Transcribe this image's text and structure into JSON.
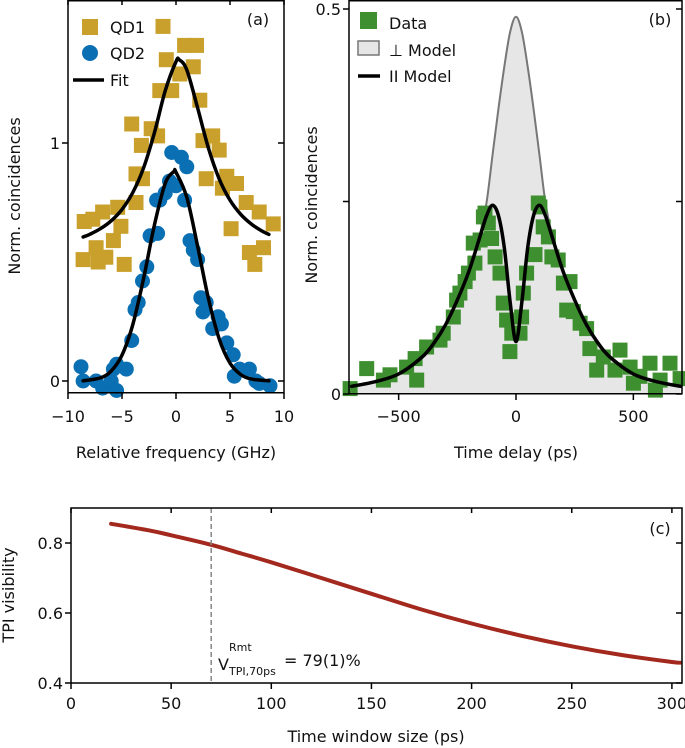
{
  "chart_data": [
    {
      "panel": "(a)",
      "type": "scatter",
      "xlabel": "Relative frequency (GHz)",
      "ylabel": "Norm. coincidences",
      "xlim": [
        -10,
        10
      ],
      "ylim": [
        -0.05,
        1.6
      ],
      "xticks": [
        "−10",
        "−5",
        "0",
        "5",
        "10"
      ],
      "xtick_values": [
        -10,
        -5,
        0,
        5,
        10
      ],
      "yticks": [
        "0",
        "1"
      ],
      "ytick_values": [
        0,
        1
      ],
      "grid": false,
      "legend_position": "top-left",
      "series": [
        {
          "name": "QD1",
          "marker": "square",
          "color": "#c9a02c",
          "x": [
            -1.2,
            0.8,
            1.9,
            -0.9,
            1.6,
            0.35,
            -1.5,
            -0.4,
            2.2,
            -4.1,
            -2.3,
            -1.7,
            2.5,
            3.4,
            -3.2,
            4.0,
            2.8,
            -3.7,
            -3.1,
            4.7,
            5.6,
            4.3,
            6.5,
            -5.4,
            -3.7,
            7.7,
            -6.8,
            -8.5,
            -7.7,
            -5.1,
            9.0,
            5.1,
            -5.8,
            -7.4,
            -8.6,
            -6.5,
            -7.2,
            -4.8,
            8.1,
            7.3,
            6.8
          ],
          "y": [
            1.49,
            1.41,
            1.41,
            1.35,
            1.32,
            1.29,
            1.22,
            1.22,
            1.18,
            1.08,
            1.06,
            1.03,
            1.01,
            1.03,
            0.99,
            0.97,
            0.85,
            0.87,
            0.85,
            0.86,
            0.83,
            0.81,
            0.75,
            0.73,
            0.75,
            0.71,
            0.71,
            0.67,
            0.68,
            0.65,
            0.66,
            0.64,
            0.59,
            0.56,
            0.51,
            0.52,
            0.5,
            0.49,
            0.56,
            0.49,
            0.54
          ]
        },
        {
          "name": "QD2",
          "marker": "circle",
          "color": "#0b6fb3",
          "x": [
            -0.4,
            0.5,
            1.0,
            -0.6,
            0.0,
            -1.0,
            -1.5,
            -1.8,
            0.8,
            -2.4,
            -1.7,
            1.3,
            1.6,
            2.0,
            -2.7,
            -3.1,
            2.3,
            -3.5,
            2.8,
            3.9,
            2.5,
            -3.8,
            3.4,
            4.2,
            -4.1,
            4.7,
            5.3,
            -5.5,
            -4.6,
            -5.8,
            -8.8,
            -8.6,
            -7.4,
            -6.8,
            -5.5,
            5.9,
            6.8,
            7.4,
            8.7,
            7.7,
            5.4,
            -6.0
          ],
          "y": [
            0.96,
            0.94,
            0.9,
            0.84,
            0.82,
            0.79,
            0.76,
            0.76,
            0.76,
            0.61,
            0.62,
            0.59,
            0.55,
            0.51,
            0.48,
            0.42,
            0.35,
            0.33,
            0.33,
            0.27,
            0.29,
            0.3,
            0.22,
            0.24,
            0.17,
            0.16,
            0.11,
            0.07,
            0.05,
            0.05,
            0.06,
            0.0,
            0.0,
            -0.03,
            -0.04,
            0.05,
            0.05,
            0.0,
            -0.02,
            -0.01,
            0.02,
            0.0
          ]
        },
        {
          "name": "Fit",
          "marker": "line",
          "color": "#000000",
          "x": [
            -8.6,
            -8,
            -7,
            -6,
            -5,
            -4,
            -3,
            -2,
            -1,
            0,
            0.3,
            1,
            2,
            3,
            4,
            5,
            6,
            7,
            8,
            8.6
          ],
          "y": [
            0.605,
            0.616,
            0.64,
            0.673,
            0.721,
            0.792,
            0.896,
            1.043,
            1.219,
            1.342,
            1.35,
            1.307,
            1.148,
            0.979,
            0.849,
            0.76,
            0.7,
            0.659,
            0.629,
            0.616
          ]
        },
        {
          "name": "Fit",
          "marker": "line",
          "color": "#000000",
          "x": [
            -8.6,
            -7,
            -6,
            -5,
            -4,
            -3,
            -2,
            -1,
            -0.2,
            0,
            1,
            2,
            3,
            4,
            5,
            6,
            7,
            8.6
          ],
          "y": [
            0.001,
            0.013,
            0.042,
            0.109,
            0.237,
            0.431,
            0.655,
            0.83,
            0.88,
            0.877,
            0.772,
            0.567,
            0.347,
            0.177,
            0.075,
            0.027,
            0.008,
            0.001
          ]
        }
      ]
    },
    {
      "panel": "(b)",
      "type": "scatter",
      "xlabel": "Time delay (ps)",
      "ylabel": "Norm. coincidences",
      "xlim": [
        -708,
        703
      ],
      "ylim": [
        0,
        0.512
      ],
      "xticks": [
        "−500",
        "0",
        "500"
      ],
      "xtick_values": [
        -500,
        0,
        500
      ],
      "yticks": [
        "0",
        "",
        "0.5"
      ],
      "ytick_values": [
        0,
        0.25,
        0.5
      ],
      "grid": false,
      "legend_position": "top-left",
      "series": [
        {
          "name": "⊥ Model",
          "marker": "area",
          "color": "#e6e6e6",
          "edge": "#777777",
          "x": [
            -700,
            -600,
            -500,
            -400,
            -350,
            -300,
            -250,
            -200,
            -150,
            -125,
            -100,
            -75,
            -50,
            -25,
            0,
            25,
            50,
            75,
            100,
            125,
            150,
            200,
            250,
            300,
            350,
            400,
            500,
            600,
            700
          ],
          "y": [
            0.01,
            0.016,
            0.026,
            0.048,
            0.066,
            0.09,
            0.122,
            0.16,
            0.212,
            0.25,
            0.31,
            0.37,
            0.425,
            0.47,
            0.49,
            0.47,
            0.425,
            0.37,
            0.31,
            0.25,
            0.212,
            0.16,
            0.122,
            0.09,
            0.066,
            0.048,
            0.026,
            0.016,
            0.01
          ]
        },
        {
          "name": "Data",
          "marker": "square",
          "color": "#3d8f2f",
          "x": [
            -707,
            -636,
            -565,
            -537,
            -466,
            -430,
            -381,
            -423,
            -324,
            -310,
            -267,
            -253,
            -239,
            -217,
            -203,
            -175,
            -182,
            -153,
            -139,
            -132,
            -118,
            -104,
            -89,
            -68,
            -54,
            -40,
            -18,
            -26,
            17,
            24,
            31,
            45,
            81,
            95,
            102,
            116,
            138,
            153,
            180,
            202,
            230,
            216,
            244,
            273,
            301,
            315,
            344,
            372,
            443,
            422,
            486,
            500,
            528,
            571,
            594,
            614,
            656,
            699
          ],
          "y": [
            0.007,
            0.033,
            0.018,
            0.025,
            0.035,
            0.046,
            0.061,
            0.018,
            0.07,
            0.079,
            0.1,
            0.122,
            0.131,
            0.146,
            0.157,
            0.17,
            0.196,
            0.2,
            0.23,
            0.235,
            0.222,
            0.202,
            0.178,
            0.157,
            0.118,
            0.096,
            0.079,
            0.055,
            0.079,
            0.1,
            0.131,
            0.157,
            0.181,
            0.248,
            0.243,
            0.217,
            0.204,
            0.178,
            0.174,
            0.144,
            0.146,
            0.109,
            0.107,
            0.092,
            0.085,
            0.059,
            0.031,
            0.048,
            0.057,
            0.031,
            0.035,
            0.014,
            0.023,
            0.04,
            0.005,
            0.018,
            0.04,
            0.02
          ]
        },
        {
          "name": "II Model",
          "marker": "line",
          "color": "#000000",
          "x": [
            -700,
            -600,
            -500,
            -400,
            -350,
            -300,
            -250,
            -200,
            -150,
            -125,
            -100,
            -75,
            -50,
            -25,
            0,
            25,
            50,
            75,
            100,
            125,
            150,
            200,
            250,
            300,
            350,
            400,
            500,
            600,
            700
          ],
          "y": [
            0.01,
            0.016,
            0.026,
            0.048,
            0.066,
            0.09,
            0.122,
            0.16,
            0.208,
            0.232,
            0.245,
            0.232,
            0.19,
            0.12,
            0.068,
            0.12,
            0.19,
            0.232,
            0.245,
            0.232,
            0.208,
            0.16,
            0.122,
            0.09,
            0.066,
            0.048,
            0.026,
            0.016,
            0.01
          ]
        }
      ]
    },
    {
      "panel": "(c)",
      "type": "line",
      "xlabel": "Time window size (ps)",
      "ylabel": "TPI visibility",
      "xlim": [
        0,
        304
      ],
      "ylim": [
        0.4,
        0.9
      ],
      "xticks": [
        "0",
        "50",
        "100",
        "150",
        "200",
        "250",
        "300"
      ],
      "xtick_values": [
        0,
        50,
        100,
        150,
        200,
        250,
        300
      ],
      "yticks": [
        "0.4",
        "0.6",
        "0.8"
      ],
      "ytick_values": [
        0.4,
        0.6,
        0.8
      ],
      "grid": false,
      "series": [
        {
          "color": "#a3281d",
          "x": [
            20,
            40,
            50,
            70,
            85,
            100,
            125,
            150,
            175,
            200,
            225,
            250,
            275,
            300,
            304
          ],
          "y": [
            0.855,
            0.835,
            0.822,
            0.795,
            0.77,
            0.745,
            0.7,
            0.655,
            0.61,
            0.57,
            0.535,
            0.505,
            0.48,
            0.46,
            0.458
          ]
        }
      ],
      "vline": {
        "x": 70,
        "color": "#888888",
        "style": "dashed"
      },
      "annotation": {
        "base": "V",
        "sup": "Rmt",
        "sub": "TPI,70ps",
        "text": "= 79(1)%"
      }
    }
  ]
}
